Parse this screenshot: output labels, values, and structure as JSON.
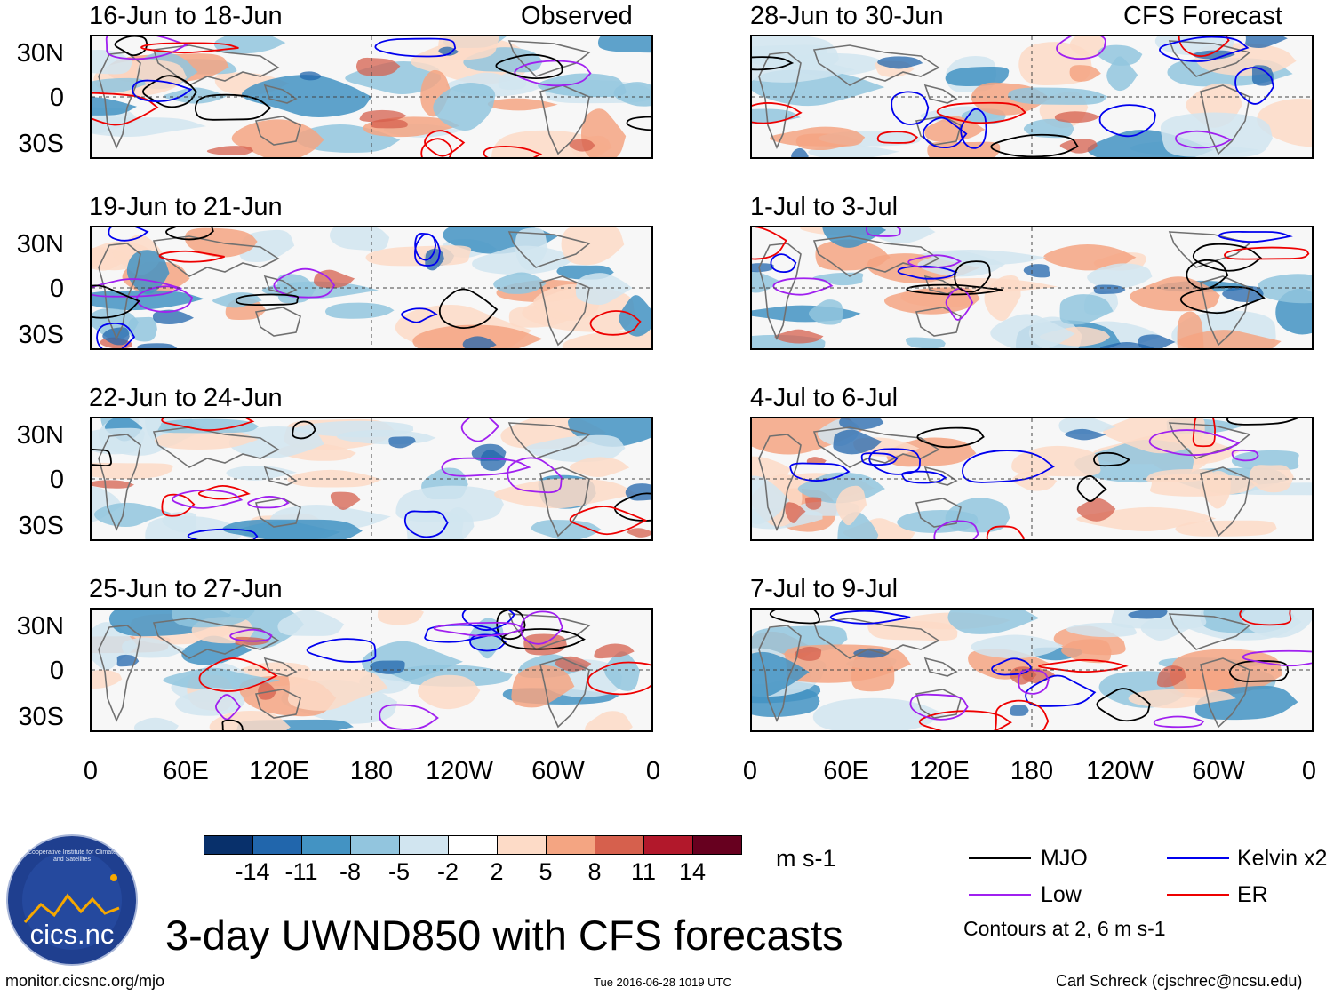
{
  "panels_left": [
    {
      "title": "16-Jun to 18-Jun",
      "tag": "Observed"
    },
    {
      "title": "19-Jun to 21-Jun",
      "tag": ""
    },
    {
      "title": "22-Jun to 24-Jun",
      "tag": ""
    },
    {
      "title": "25-Jun to 27-Jun",
      "tag": ""
    }
  ],
  "panels_right": [
    {
      "title": "28-Jun to 30-Jun",
      "tag": "CFS Forecast"
    },
    {
      "title": "1-Jul to 3-Jul",
      "tag": ""
    },
    {
      "title": "4-Jul to 6-Jul",
      "tag": ""
    },
    {
      "title": "7-Jul to 9-Jul",
      "tag": ""
    }
  ],
  "lat_labels": [
    "30N",
    "0",
    "30S"
  ],
  "lon_labels": [
    "0",
    "60E",
    "120E",
    "180",
    "120W",
    "60W",
    "0"
  ],
  "colorbar": {
    "ticks": [
      "-14",
      "-11",
      "-8",
      "-5",
      "-2",
      "2",
      "5",
      "8",
      "11",
      "14"
    ],
    "colors": [
      "#08306b",
      "#2166ac",
      "#4393c3",
      "#92c5de",
      "#d1e5f0",
      "#ffffff",
      "#fddbc7",
      "#f4a582",
      "#d6604d",
      "#b2182b",
      "#67001f"
    ],
    "units": "m s-1"
  },
  "legend": {
    "mjo": {
      "label": "MJO",
      "color": "#000000"
    },
    "kelvin": {
      "label": "Kelvin x2",
      "color": "#0000ee"
    },
    "low": {
      "label": "Low",
      "color": "#a020f0"
    },
    "er": {
      "label": "ER",
      "color": "#ee0000"
    },
    "note": "Contours at 2, 6 m s-1"
  },
  "logo_text": "cics.nc",
  "logo_ring_text": "Cooperative Institute for Climate and Satellites",
  "main_title": "3-day UWND850 with CFS forecasts",
  "footer": {
    "left": "monitor.cicsnc.org/mjo",
    "center": "Tue 2016-06-28 1019 UTC",
    "right": "Carl Schreck (cjschrec@ncsu.edu)"
  }
}
